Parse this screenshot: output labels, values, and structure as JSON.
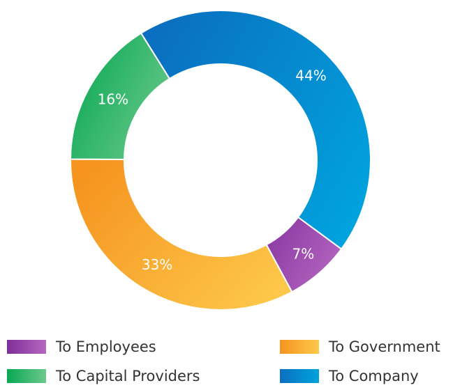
{
  "chart_data": {
    "type": "pie",
    "donut": true,
    "categories": [
      "To Company",
      "To Employees",
      "To Government",
      "To Capital Providers"
    ],
    "values": [
      44,
      7,
      33,
      16
    ],
    "labels": [
      "44%",
      "7%",
      "33%",
      "16%"
    ],
    "colors": {
      "To Company": [
        "#0a6fc0",
        "#00a3de"
      ],
      "To Employees": [
        "#8a3aa2",
        "#b667c1"
      ],
      "To Government": [
        "#f5941f",
        "#fdc84a"
      ],
      "To Capital Providers": [
        "#08a855",
        "#6cc98c"
      ]
    },
    "legend": {
      "placement": "bottom",
      "entries": [
        "To Employees",
        "To Government",
        "To Capital Providers",
        "To Company"
      ]
    }
  }
}
